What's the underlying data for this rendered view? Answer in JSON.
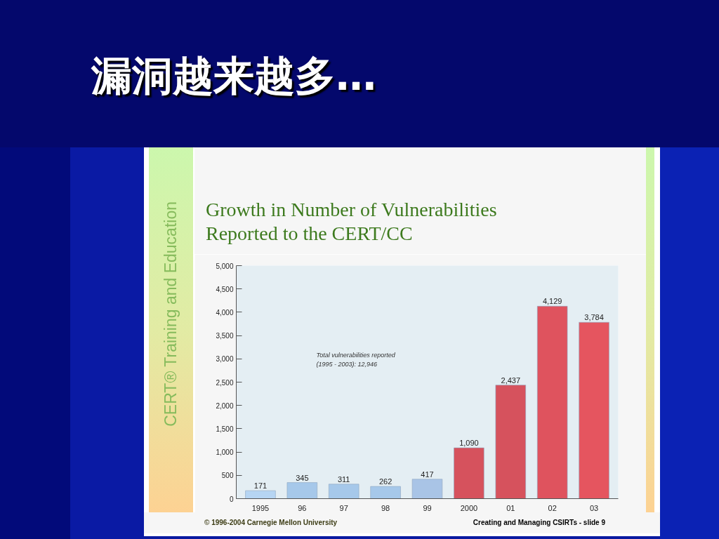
{
  "chart_data": {
    "type": "bar",
    "title": "漏洞越来越多…",
    "subtitle": "Growth in Number of Vulnerabilities Reported to the CERT/CC",
    "categories": [
      "1995",
      "96",
      "97",
      "98",
      "99",
      "2000",
      "01",
      "02",
      "03"
    ],
    "values": [
      171,
      345,
      311,
      262,
      417,
      1090,
      2437,
      4129,
      3784
    ],
    "colors": [
      "#b6d5f3",
      "#a6c8ea",
      "#a6c8ea",
      "#a6c8ea",
      "#a9c4e6",
      "#d6525d",
      "#d6525d",
      "#df535e",
      "#e5555f"
    ],
    "value_labels": [
      "171",
      "345",
      "311",
      "262",
      "417",
      "1,090",
      "2,437",
      "4,129",
      "3,784"
    ],
    "ylim": [
      0,
      5000
    ],
    "yticks": [
      0,
      500,
      {
        "value": 1000,
        "label": "1,000"
      },
      {
        "value": 1500,
        "label": "1,500"
      },
      {
        "value": 2000,
        "label": "2,000"
      },
      {
        "value": 2500,
        "label": "2,500"
      },
      {
        "value": 3000,
        "label": "3,000"
      },
      {
        "value": 3500,
        "label": "3,500"
      },
      {
        "value": 4000,
        "label": "4,000"
      },
      {
        "value": 4500,
        "label": "4,500"
      },
      {
        "value": 5000,
        "label": "5,000"
      }
    ],
    "annotations": [
      "Total vulnerabilities reported\n(1995 - 2003): 12,946",
      "CERT® Training and Education",
      "© 1996-2004 Carnegie Mellon University",
      "Creating and Managing CSIRTs - slide 9"
    ]
  }
}
